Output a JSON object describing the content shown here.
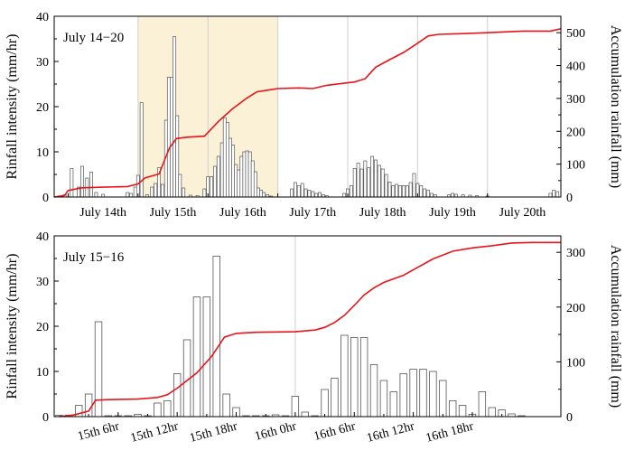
{
  "chart_data": [
    {
      "type": "bar",
      "annotation": "July 14−20",
      "ylabel_left": "Rinfall intensity (mm/hr)",
      "ylabel_right": "Accumulation rainfall (mm)",
      "ylim_left": [
        0,
        40
      ],
      "ylim_right": [
        0,
        550
      ],
      "yticks_left": [
        "0",
        "10",
        "20",
        "30",
        "40"
      ],
      "yticks_right": [
        "0",
        "100",
        "200",
        "300",
        "400",
        "500"
      ],
      "x_categories": [
        "July 14th",
        "July 15th",
        "July 16th",
        "July 17th",
        "July 18th",
        "July 19th",
        "July 20th"
      ],
      "highlight_range_days": [
        1,
        3
      ],
      "highlight_color": "#fbf1d6",
      "bar_color": "#ffffff",
      "line_color": "#e8141b",
      "bars_hourly_intensity": [
        [
          0.9,
          0.2
        ],
        [
          0.95,
          0.5
        ],
        [
          1.05,
          6.3
        ],
        [
          1.15,
          2.2
        ],
        [
          1.2,
          6.8
        ],
        [
          1.27,
          4.2
        ],
        [
          1.33,
          5.5
        ],
        [
          1.4,
          1.0
        ],
        [
          1.5,
          0.6
        ],
        [
          1.85,
          1.0
        ],
        [
          1.9,
          0.8
        ],
        [
          1.96,
          2.2
        ],
        [
          2.0,
          4.8
        ],
        [
          2.05,
          20.9
        ],
        [
          2.13,
          0.5
        ],
        [
          2.2,
          2.2
        ],
        [
          2.25,
          3.0
        ],
        [
          2.3,
          6.5
        ],
        [
          2.35,
          2.8
        ],
        [
          2.4,
          17.0
        ],
        [
          2.44,
          26.5
        ],
        [
          2.48,
          26.5
        ],
        [
          2.52,
          35.5
        ],
        [
          2.56,
          18.0
        ],
        [
          2.6,
          5.0
        ],
        [
          2.65,
          2.0
        ],
        [
          2.75,
          0.4
        ],
        [
          2.85,
          0.3
        ],
        [
          2.95,
          1.8
        ],
        [
          3.0,
          4.5
        ],
        [
          3.05,
          4.5
        ],
        [
          3.1,
          6.8
        ],
        [
          3.15,
          9.0
        ],
        [
          3.2,
          12.0
        ],
        [
          3.24,
          17.5
        ],
        [
          3.28,
          16.5
        ],
        [
          3.32,
          13.0
        ],
        [
          3.36,
          11.5
        ],
        [
          3.4,
          7.2
        ],
        [
          3.44,
          6.0
        ],
        [
          3.48,
          9.0
        ],
        [
          3.52,
          10.0
        ],
        [
          3.56,
          10.2
        ],
        [
          3.6,
          10.0
        ],
        [
          3.64,
          8.0
        ],
        [
          3.68,
          5.6
        ],
        [
          3.72,
          2.0
        ],
        [
          3.76,
          1.5
        ],
        [
          3.8,
          1.0
        ],
        [
          3.85,
          0.5
        ],
        [
          3.9,
          0.2
        ],
        [
          4.2,
          1.8
        ],
        [
          4.25,
          3.2
        ],
        [
          4.3,
          2.5
        ],
        [
          4.35,
          3.0
        ],
        [
          4.4,
          1.8
        ],
        [
          4.45,
          1.5
        ],
        [
          4.5,
          1.2
        ],
        [
          4.55,
          0.8
        ],
        [
          4.6,
          1.0
        ],
        [
          4.65,
          0.5
        ],
        [
          4.7,
          0.3
        ],
        [
          4.95,
          0.8
        ],
        [
          5.0,
          1.8
        ],
        [
          5.05,
          2.5
        ],
        [
          5.1,
          6.3
        ],
        [
          5.15,
          7.5
        ],
        [
          5.2,
          6.2
        ],
        [
          5.25,
          8.0
        ],
        [
          5.3,
          6.5
        ],
        [
          5.35,
          9.0
        ],
        [
          5.4,
          8.2
        ],
        [
          5.45,
          7.0
        ],
        [
          5.5,
          6.2
        ],
        [
          5.55,
          5.0
        ],
        [
          5.6,
          3.3
        ],
        [
          5.65,
          2.5
        ],
        [
          5.7,
          2.8
        ],
        [
          5.75,
          2.5
        ],
        [
          5.8,
          2.5
        ],
        [
          5.85,
          2.5
        ],
        [
          5.9,
          3.2
        ],
        [
          5.95,
          5.2
        ],
        [
          6.0,
          3.0
        ],
        [
          6.05,
          2.5
        ],
        [
          6.1,
          1.8
        ],
        [
          6.15,
          1.5
        ],
        [
          6.2,
          0.8
        ],
        [
          6.25,
          0.5
        ],
        [
          6.45,
          0.5
        ],
        [
          6.5,
          0.8
        ],
        [
          6.55,
          0.6
        ],
        [
          6.65,
          0.5
        ],
        [
          6.75,
          0.4
        ],
        [
          6.85,
          0.3
        ],
        [
          7.0,
          0.2
        ],
        [
          7.9,
          0.8
        ],
        [
          7.95,
          1.5
        ],
        [
          8.0,
          1.2
        ]
      ],
      "accumulation_line": [
        [
          0.8,
          0
        ],
        [
          0.95,
          5
        ],
        [
          1.0,
          20
        ],
        [
          1.2,
          28
        ],
        [
          1.5,
          30
        ],
        [
          1.85,
          32
        ],
        [
          2.0,
          40
        ],
        [
          2.1,
          58
        ],
        [
          2.3,
          70
        ],
        [
          2.45,
          150
        ],
        [
          2.55,
          178
        ],
        [
          2.7,
          182
        ],
        [
          2.95,
          185
        ],
        [
          3.15,
          230
        ],
        [
          3.35,
          268
        ],
        [
          3.55,
          300
        ],
        [
          3.7,
          320
        ],
        [
          3.85,
          325
        ],
        [
          4.0,
          330
        ],
        [
          4.3,
          332
        ],
        [
          4.5,
          330
        ],
        [
          4.7,
          340
        ],
        [
          5.1,
          350
        ],
        [
          5.25,
          360
        ],
        [
          5.4,
          395
        ],
        [
          5.6,
          418
        ],
        [
          5.8,
          440
        ],
        [
          6.0,
          468
        ],
        [
          6.15,
          490
        ],
        [
          6.3,
          495
        ],
        [
          6.6,
          497
        ],
        [
          7.0,
          500
        ],
        [
          7.5,
          505
        ],
        [
          7.9,
          505
        ],
        [
          8.05,
          512
        ]
      ]
    },
    {
      "type": "bar",
      "annotation": "July 15−16",
      "ylabel_left": "Rinfall intensity (mm/hr)",
      "ylabel_right": "Accumulation rainfall (mm)",
      "ylim_left": [
        0,
        40
      ],
      "ylim_right": [
        0,
        330
      ],
      "yticks_left": [
        "0",
        "10",
        "20",
        "30",
        "40"
      ],
      "yticks_right": [
        "0",
        "100",
        "200",
        "300"
      ],
      "xticks": [
        "15th 6hr",
        "15th 12hr",
        "15th 18hr",
        "16th 0hr",
        "16th 6hr",
        "16th 12hr",
        "16th 18hr"
      ],
      "x_hours_range": [
        0,
        48
      ],
      "bar_color": "#ffffff",
      "line_color": "#e8141b",
      "bars_hourly_intensity": [
        [
          0,
          0.3
        ],
        [
          1,
          0.3
        ],
        [
          2,
          2.5
        ],
        [
          3,
          5.0
        ],
        [
          4,
          21.0
        ],
        [
          5,
          0.2
        ],
        [
          6,
          0.2
        ],
        [
          7,
          0.2
        ],
        [
          8,
          0.5
        ],
        [
          9,
          0.2
        ],
        [
          10,
          3.0
        ],
        [
          11,
          3.5
        ],
        [
          12,
          9.5
        ],
        [
          13,
          17.0
        ],
        [
          14,
          26.5
        ],
        [
          15,
          26.5
        ],
        [
          16,
          35.5
        ],
        [
          17,
          5.0
        ],
        [
          18,
          2.0
        ],
        [
          19,
          0.2
        ],
        [
          20,
          0.2
        ],
        [
          21,
          0.2
        ],
        [
          22,
          0.4
        ],
        [
          23,
          0.2
        ],
        [
          24,
          4.5
        ],
        [
          25,
          1.0
        ],
        [
          26,
          0.2
        ],
        [
          27,
          6.0
        ],
        [
          28,
          8.5
        ],
        [
          29,
          18.0
        ],
        [
          30,
          17.5
        ],
        [
          31,
          17.5
        ],
        [
          32,
          11.5
        ],
        [
          33,
          8.0
        ],
        [
          34,
          5.5
        ],
        [
          35,
          9.5
        ],
        [
          36,
          10.5
        ],
        [
          37,
          10.5
        ],
        [
          38,
          10.0
        ],
        [
          39,
          8.0
        ],
        [
          40,
          3.5
        ],
        [
          41,
          2.5
        ],
        [
          42,
          0.5
        ],
        [
          43,
          5.5
        ],
        [
          44,
          2.0
        ],
        [
          45,
          1.5
        ],
        [
          46,
          0.6
        ],
        [
          47,
          0.2
        ]
      ],
      "accumulation_line": [
        [
          0,
          0
        ],
        [
          1.5,
          3
        ],
        [
          3,
          10
        ],
        [
          3.7,
          30
        ],
        [
          5,
          31
        ],
        [
          8,
          32
        ],
        [
          10,
          35
        ],
        [
          11,
          40
        ],
        [
          12,
          52
        ],
        [
          14,
          80
        ],
        [
          15.5,
          110
        ],
        [
          16.8,
          145
        ],
        [
          18,
          152
        ],
        [
          20,
          154
        ],
        [
          24,
          155
        ],
        [
          26,
          158
        ],
        [
          27,
          163
        ],
        [
          28,
          172
        ],
        [
          29,
          185
        ],
        [
          30,
          203
        ],
        [
          31,
          222
        ],
        [
          32,
          235
        ],
        [
          33,
          245
        ],
        [
          35,
          258
        ],
        [
          36,
          268
        ],
        [
          38,
          288
        ],
        [
          40,
          302
        ],
        [
          42,
          308
        ],
        [
          44,
          312
        ],
        [
          46,
          317
        ],
        [
          48,
          318
        ],
        [
          51,
          318
        ]
      ]
    }
  ]
}
